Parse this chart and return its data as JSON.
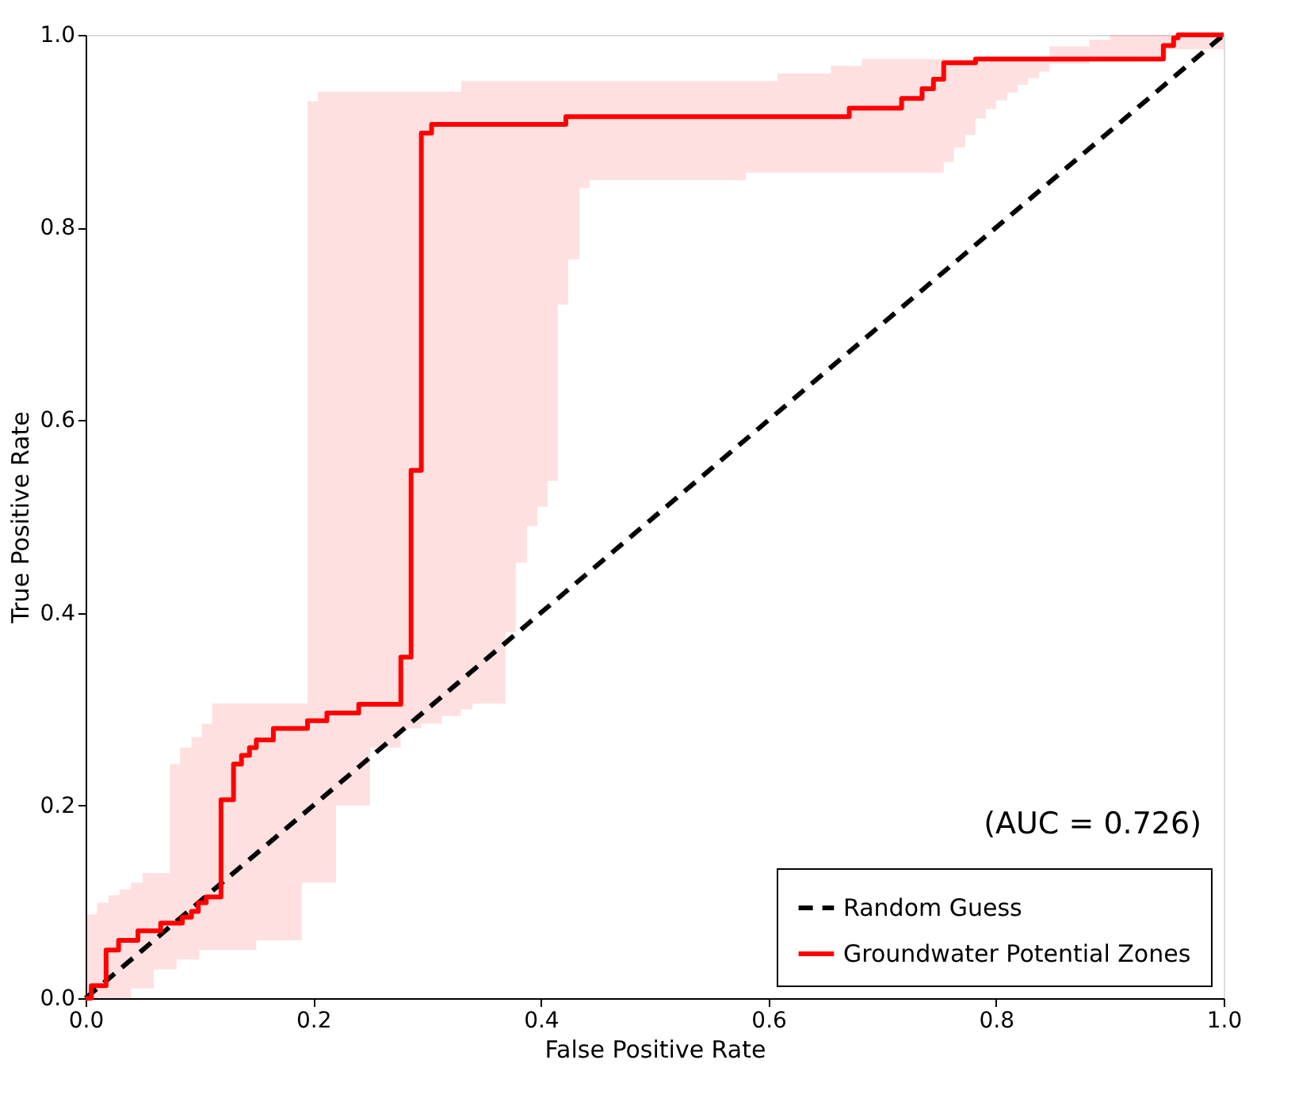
{
  "chart_data": {
    "type": "step",
    "xlabel": "False Positive Rate",
    "ylabel": "True Positive Rate",
    "xlim": [
      0,
      1
    ],
    "ylim": [
      0,
      1
    ],
    "xticks": [
      {
        "value": 0,
        "label": "0.0"
      },
      {
        "value": 0.2,
        "label": "0.2"
      },
      {
        "value": 0.4,
        "label": "0.4"
      },
      {
        "value": 0.6,
        "label": "0.6"
      },
      {
        "value": 0.8,
        "label": "0.8"
      },
      {
        "value": 1,
        "label": "1.0"
      }
    ],
    "yticks": [
      {
        "value": 0,
        "label": "0.0"
      },
      {
        "value": 0.2,
        "label": "0.2"
      },
      {
        "value": 0.4,
        "label": "0.4"
      },
      {
        "value": 0.6,
        "label": "0.6"
      },
      {
        "value": 0.8,
        "label": "0.8"
      },
      {
        "value": 1,
        "label": "1.0"
      }
    ],
    "grid": false,
    "legend": "bottom right",
    "annotations": [
      "(AUC = 0.726)"
    ],
    "series": [
      {
        "name": "Random Guess",
        "type": "line",
        "line_style": "dashed",
        "color": "#000000",
        "x": [
          0,
          1
        ],
        "values": [
          0,
          1
        ]
      },
      {
        "name": "Groundwater Potential Zones",
        "line_style": "solid",
        "color": "#ff0000",
        "x": [
          0,
          0.005,
          0.01,
          0.018,
          0.02,
          0.029,
          0.03,
          0.04,
          0.046,
          0.05,
          0.06,
          0.066,
          0.074,
          0.08,
          0.083,
          0.085,
          0.093,
          0.099,
          0.1,
          0.102,
          0.106,
          0.111,
          0.119,
          0.13,
          0.137,
          0.144,
          0.15,
          0.165,
          0.19,
          0.195,
          0.204,
          0.212,
          0.22,
          0.24,
          0.25,
          0.277,
          0.286,
          0.295,
          0.304,
          0.313,
          0.33,
          0.34,
          0.369,
          0.378,
          0.388,
          0.397,
          0.406,
          0.415,
          0.422,
          0.424,
          0.434,
          0.443,
          0.58,
          0.608,
          0.655,
          0.671,
          0.682,
          0.717,
          0.735,
          0.745,
          0.754,
          0.763,
          0.773,
          0.782,
          0.791,
          0.8,
          0.81,
          0.819,
          0.828,
          0.838,
          0.847,
          0.882,
          0.9,
          0.947,
          0.95,
          0.956,
          0.96,
          1
        ],
        "values": [
          0,
          0.013,
          0.013,
          0.05,
          0.05,
          0.06,
          0.06,
          0.06,
          0.07,
          0.07,
          0.07,
          0.078,
          0.078,
          0.078,
          0.078,
          0.084,
          0.09,
          0.099,
          0.099,
          0.099,
          0.105,
          0.105,
          0.206,
          0.243,
          0.252,
          0.26,
          0.268,
          0.28,
          0.28,
          0.288,
          0.288,
          0.296,
          0.296,
          0.305,
          0.305,
          0.354,
          0.548,
          0.898,
          0.907,
          0.907,
          0.907,
          0.907,
          0.907,
          0.907,
          0.907,
          0.907,
          0.907,
          0.907,
          0.915,
          0.915,
          0.915,
          0.915,
          0.915,
          0.915,
          0.915,
          0.924,
          0.924,
          0.934,
          0.944,
          0.954,
          0.971,
          0.971,
          0.971,
          0.975,
          0.975,
          0.975,
          0.975,
          0.975,
          0.975,
          0.975,
          0.975,
          0.975,
          0.975,
          0.989,
          0.989,
          0.997,
          1,
          1
        ],
        "lower": [
          0,
          0,
          0,
          0,
          0,
          0,
          0,
          0.01,
          0.01,
          0.01,
          0.03,
          0.03,
          0.03,
          0.04,
          0.04,
          0.04,
          0.04,
          0.04,
          0.05,
          0.05,
          0.05,
          0.05,
          0.05,
          0.05,
          0.05,
          0.05,
          0.06,
          0.06,
          0.12,
          0.12,
          0.12,
          0.12,
          0.2,
          0.2,
          0.26,
          0.28,
          0.28,
          0.285,
          0.285,
          0.293,
          0.3,
          0.306,
          0.38,
          0.452,
          0.49,
          0.51,
          0.537,
          0.72,
          0.72,
          0.767,
          0.841,
          0.849,
          0.857,
          0.857,
          0.857,
          0.857,
          0.857,
          0.857,
          0.857,
          0.857,
          0.868,
          0.883,
          0.896,
          0.913,
          0.923,
          0.932,
          0.94,
          0.948,
          0.955,
          0.962,
          0.97,
          0.975,
          0.975,
          0.975,
          0.985,
          0.985,
          0.985,
          1
        ],
        "upper": [
          0.087,
          0.087,
          0.099,
          0.099,
          0.107,
          0.107,
          0.113,
          0.12,
          0.12,
          0.13,
          0.13,
          0.13,
          0.243,
          0.243,
          0.26,
          0.26,
          0.271,
          0.271,
          0.271,
          0.285,
          0.285,
          0.306,
          0.306,
          0.306,
          0.306,
          0.306,
          0.306,
          0.306,
          0.306,
          0.931,
          0.941,
          0.941,
          0.941,
          0.941,
          0.941,
          0.941,
          0.941,
          0.941,
          0.941,
          0.941,
          0.952,
          0.952,
          0.952,
          0.952,
          0.952,
          0.952,
          0.952,
          0.952,
          0.952,
          0.952,
          0.952,
          0.952,
          0.952,
          0.96,
          0.968,
          0.968,
          0.975,
          0.975,
          0.975,
          0.975,
          0.975,
          0.975,
          0.975,
          0.975,
          0.975,
          0.975,
          0.975,
          0.975,
          0.975,
          0.975,
          0.988,
          0.995,
          1,
          1,
          1,
          1,
          1,
          1
        ]
      }
    ]
  }
}
